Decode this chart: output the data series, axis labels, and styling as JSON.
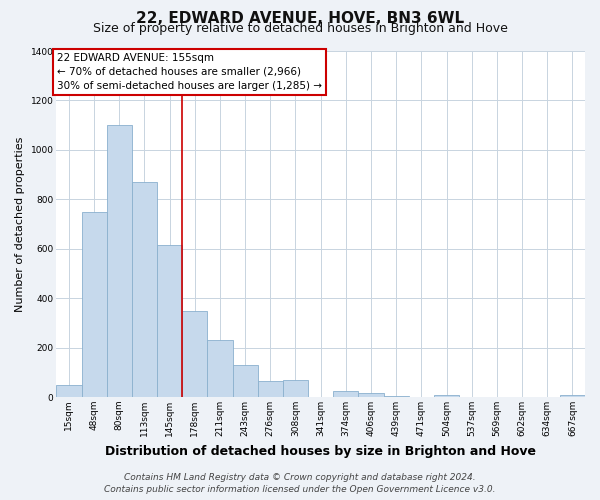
{
  "title": "22, EDWARD AVENUE, HOVE, BN3 6WL",
  "subtitle": "Size of property relative to detached houses in Brighton and Hove",
  "xlabel": "Distribution of detached houses by size in Brighton and Hove",
  "ylabel": "Number of detached properties",
  "categories": [
    "15sqm",
    "48sqm",
    "80sqm",
    "113sqm",
    "145sqm",
    "178sqm",
    "211sqm",
    "243sqm",
    "276sqm",
    "308sqm",
    "341sqm",
    "374sqm",
    "406sqm",
    "439sqm",
    "471sqm",
    "504sqm",
    "537sqm",
    "569sqm",
    "602sqm",
    "634sqm",
    "667sqm"
  ],
  "values": [
    50,
    750,
    1100,
    870,
    615,
    350,
    230,
    130,
    65,
    70,
    0,
    25,
    15,
    5,
    0,
    10,
    0,
    0,
    0,
    0,
    10
  ],
  "bar_color": "#c6d9ec",
  "bar_edge_color": "#8ab0ce",
  "vline_x_index": 4,
  "vline_color": "#cc0000",
  "annotation_title": "22 EDWARD AVENUE: 155sqm",
  "annotation_line1": "← 70% of detached houses are smaller (2,966)",
  "annotation_line2": "30% of semi-detached houses are larger (1,285) →",
  "annotation_box_color": "#ffffff",
  "annotation_box_edge_color": "#cc0000",
  "ylim": [
    0,
    1400
  ],
  "yticks": [
    0,
    200,
    400,
    600,
    800,
    1000,
    1200,
    1400
  ],
  "footer_line1": "Contains HM Land Registry data © Crown copyright and database right 2024.",
  "footer_line2": "Contains public sector information licensed under the Open Government Licence v3.0.",
  "bg_color": "#eef2f7",
  "plot_bg_color": "#ffffff",
  "grid_color": "#c8d4e0",
  "title_fontsize": 11,
  "subtitle_fontsize": 9,
  "xlabel_fontsize": 9,
  "ylabel_fontsize": 8,
  "footer_fontsize": 6.5,
  "tick_fontsize": 6.5,
  "annot_fontsize": 7.5
}
